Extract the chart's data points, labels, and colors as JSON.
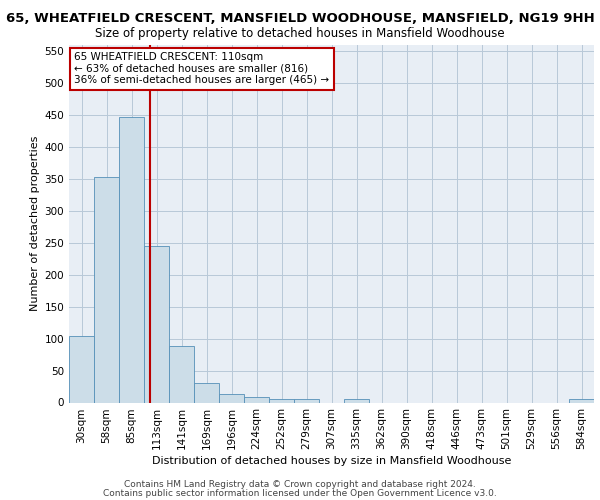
{
  "title_line1": "65, WHEATFIELD CRESCENT, MANSFIELD WOODHOUSE, MANSFIELD, NG19 9HH",
  "title_line2": "Size of property relative to detached houses in Mansfield Woodhouse",
  "xlabel": "Distribution of detached houses by size in Mansfield Woodhouse",
  "ylabel": "Number of detached properties",
  "footer_line1": "Contains HM Land Registry data © Crown copyright and database right 2024.",
  "footer_line2": "Contains public sector information licensed under the Open Government Licence v3.0.",
  "bin_labels": [
    "30sqm",
    "58sqm",
    "85sqm",
    "113sqm",
    "141sqm",
    "169sqm",
    "196sqm",
    "224sqm",
    "252sqm",
    "279sqm",
    "307sqm",
    "335sqm",
    "362sqm",
    "390sqm",
    "418sqm",
    "446sqm",
    "473sqm",
    "501sqm",
    "529sqm",
    "556sqm",
    "584sqm"
  ],
  "bar_values": [
    104,
    353,
    447,
    245,
    88,
    30,
    13,
    9,
    6,
    5,
    0,
    5,
    0,
    0,
    0,
    0,
    0,
    0,
    0,
    0,
    5
  ],
  "bar_color": "#ccdde8",
  "bar_edge_color": "#5590b8",
  "grid_color": "#b8c8d8",
  "background_color": "#e8eef5",
  "vline_x_index": 2.72,
  "vline_color": "#bb0000",
  "annotation_text": "65 WHEATFIELD CRESCENT: 110sqm\n← 63% of detached houses are smaller (816)\n36% of semi-detached houses are larger (465) →",
  "ylim": [
    0,
    560
  ],
  "yticks": [
    0,
    50,
    100,
    150,
    200,
    250,
    300,
    350,
    400,
    450,
    500,
    550
  ],
  "title1_fontsize": 9.5,
  "title2_fontsize": 8.5,
  "xlabel_fontsize": 8.0,
  "ylabel_fontsize": 8.0,
  "tick_fontsize": 7.5,
  "annot_fontsize": 7.5,
  "footer_fontsize": 6.5
}
